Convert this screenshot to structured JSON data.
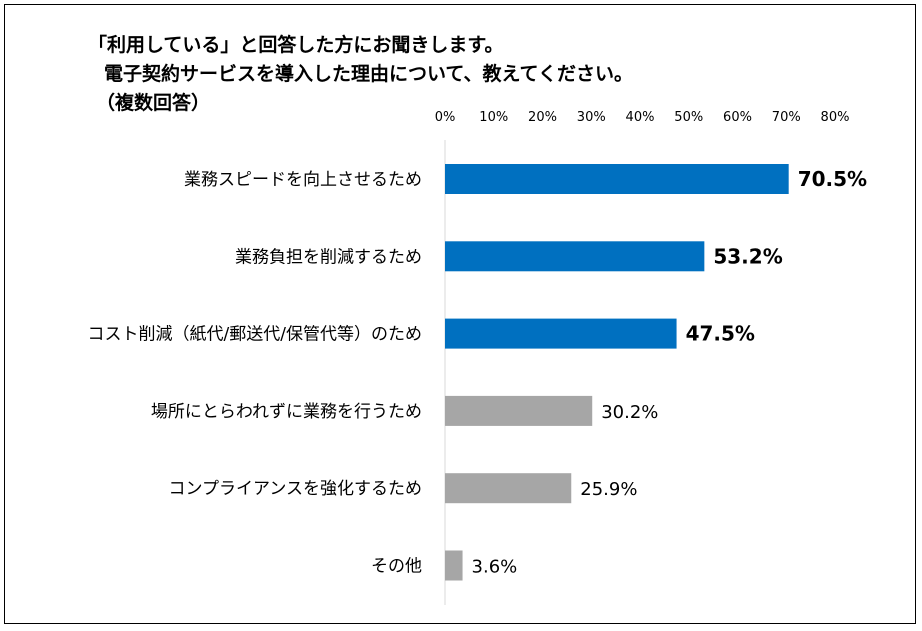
{
  "chart_data": {
    "type": "bar",
    "orientation": "horizontal",
    "title_lines": [
      "「利用している」と回答した方にお聞きします。",
      "電子契約サービスを導入した理由について、教えてください。",
      "（複数回答）"
    ],
    "categories": [
      "業務スピードを向上させるため",
      "業務負担を削減するため",
      "コスト削減（紙代/郵送代/保管代等）のため",
      "場所にとらわれずに業務を行うため",
      "コンプライアンスを強化するため",
      "その他"
    ],
    "values": [
      70.5,
      53.2,
      47.5,
      30.2,
      25.9,
      3.6
    ],
    "value_labels": [
      "70.5%",
      "53.2%",
      "47.5%",
      "30.2%",
      "25.9%",
      "3.6%"
    ],
    "highlighted": [
      true,
      true,
      true,
      false,
      false,
      false
    ],
    "xlim": [
      0,
      80
    ],
    "x_ticks": [
      "0%",
      "10%",
      "20%",
      "30%",
      "40%",
      "50%",
      "60%",
      "70%",
      "80%"
    ],
    "grid": false,
    "colors": {
      "highlight": "#0070C0",
      "other": "#A6A6A6",
      "axis": "#D9D9D9"
    }
  }
}
